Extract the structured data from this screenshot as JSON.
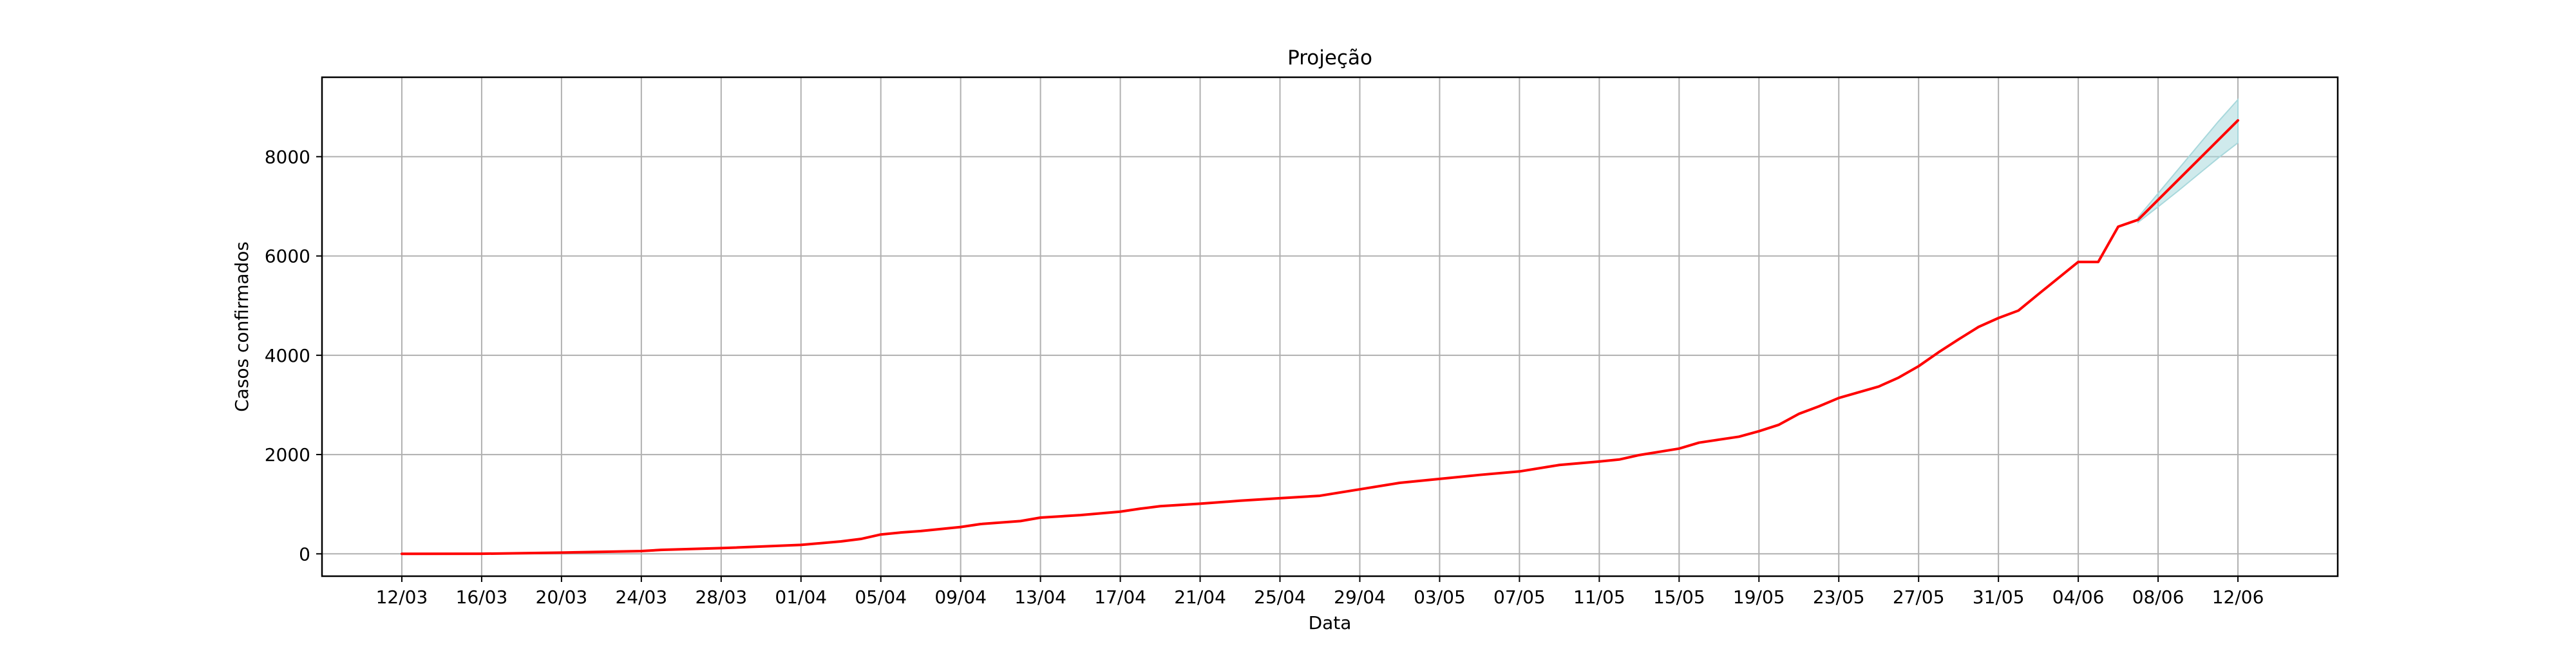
{
  "chart_data": {
    "type": "line",
    "title": "Projeção",
    "xlabel": "Data",
    "ylabel": "Casos confirmados",
    "grid": true,
    "x_range": [
      "2020-03-08",
      "2020-06-17"
    ],
    "ylim": [
      -450,
      9600
    ],
    "x_ticks": [
      "2020-03-12",
      "2020-03-16",
      "2020-03-20",
      "2020-03-24",
      "2020-03-28",
      "2020-04-01",
      "2020-04-05",
      "2020-04-09",
      "2020-04-13",
      "2020-04-17",
      "2020-04-21",
      "2020-04-25",
      "2020-04-29",
      "2020-05-03",
      "2020-05-07",
      "2020-05-11",
      "2020-05-15",
      "2020-05-19",
      "2020-05-23",
      "2020-05-27",
      "2020-05-31",
      "2020-06-04",
      "2020-06-08",
      "2020-06-12"
    ],
    "x_tick_labels": [
      "12/03",
      "16/03",
      "20/03",
      "24/03",
      "28/03",
      "01/04",
      "05/04",
      "09/04",
      "13/04",
      "17/04",
      "21/04",
      "25/04",
      "29/04",
      "03/05",
      "07/05",
      "11/05",
      "15/05",
      "19/05",
      "23/05",
      "27/05",
      "31/05",
      "04/06",
      "08/06",
      "12/06"
    ],
    "y_ticks": [
      0,
      2000,
      4000,
      6000,
      8000
    ],
    "y_tick_labels": [
      "0",
      "2000",
      "4000",
      "6000",
      "8000"
    ],
    "series": [
      {
        "color": "#ff0000",
        "points": [
          [
            "2020-03-12",
            0
          ],
          [
            "2020-03-16",
            2
          ],
          [
            "2020-03-20",
            25
          ],
          [
            "2020-03-24",
            55
          ],
          [
            "2020-03-25",
            80
          ],
          [
            "2020-03-28",
            115
          ],
          [
            "2020-04-01",
            180
          ],
          [
            "2020-04-03",
            250
          ],
          [
            "2020-04-04",
            300
          ],
          [
            "2020-04-05",
            390
          ],
          [
            "2020-04-06",
            430
          ],
          [
            "2020-04-07",
            460
          ],
          [
            "2020-04-09",
            540
          ],
          [
            "2020-04-10",
            600
          ],
          [
            "2020-04-12",
            660
          ],
          [
            "2020-04-13",
            730
          ],
          [
            "2020-04-15",
            780
          ],
          [
            "2020-04-17",
            850
          ],
          [
            "2020-04-18",
            910
          ],
          [
            "2020-04-19",
            960
          ],
          [
            "2020-04-21",
            1010
          ],
          [
            "2020-04-23",
            1070
          ],
          [
            "2020-04-25",
            1120
          ],
          [
            "2020-04-27",
            1170
          ],
          [
            "2020-04-29",
            1300
          ],
          [
            "2020-05-01",
            1430
          ],
          [
            "2020-05-03",
            1510
          ],
          [
            "2020-05-05",
            1590
          ],
          [
            "2020-05-07",
            1660
          ],
          [
            "2020-05-09",
            1790
          ],
          [
            "2020-05-11",
            1860
          ],
          [
            "2020-05-12",
            1900
          ],
          [
            "2020-05-13",
            1990
          ],
          [
            "2020-05-15",
            2120
          ],
          [
            "2020-05-16",
            2240
          ],
          [
            "2020-05-18",
            2360
          ],
          [
            "2020-05-19",
            2470
          ],
          [
            "2020-05-20",
            2600
          ],
          [
            "2020-05-21",
            2820
          ],
          [
            "2020-05-22",
            2970
          ],
          [
            "2020-05-23",
            3140
          ],
          [
            "2020-05-25",
            3370
          ],
          [
            "2020-05-26",
            3550
          ],
          [
            "2020-05-27",
            3780
          ],
          [
            "2020-05-28",
            4060
          ],
          [
            "2020-05-29",
            4320
          ],
          [
            "2020-05-30",
            4570
          ],
          [
            "2020-05-31",
            4750
          ],
          [
            "2020-06-01",
            4900
          ],
          [
            "2020-06-02",
            5230
          ],
          [
            "2020-06-04",
            5880
          ],
          [
            "2020-06-05",
            5880
          ],
          [
            "2020-06-06",
            6590
          ],
          [
            "2020-06-07",
            6730
          ],
          [
            "2020-06-12",
            8730
          ]
        ]
      }
    ],
    "bands": [
      {
        "color": "#a8d8dc",
        "x": [
          "2020-06-07",
          "2020-06-08",
          "2020-06-09",
          "2020-06-10",
          "2020-06-11",
          "2020-06-12"
        ],
        "upper": [
          6780,
          7260,
          7740,
          8220,
          8700,
          9150
        ],
        "lower": [
          6680,
          6990,
          7310,
          7640,
          7970,
          8280
        ]
      }
    ]
  }
}
